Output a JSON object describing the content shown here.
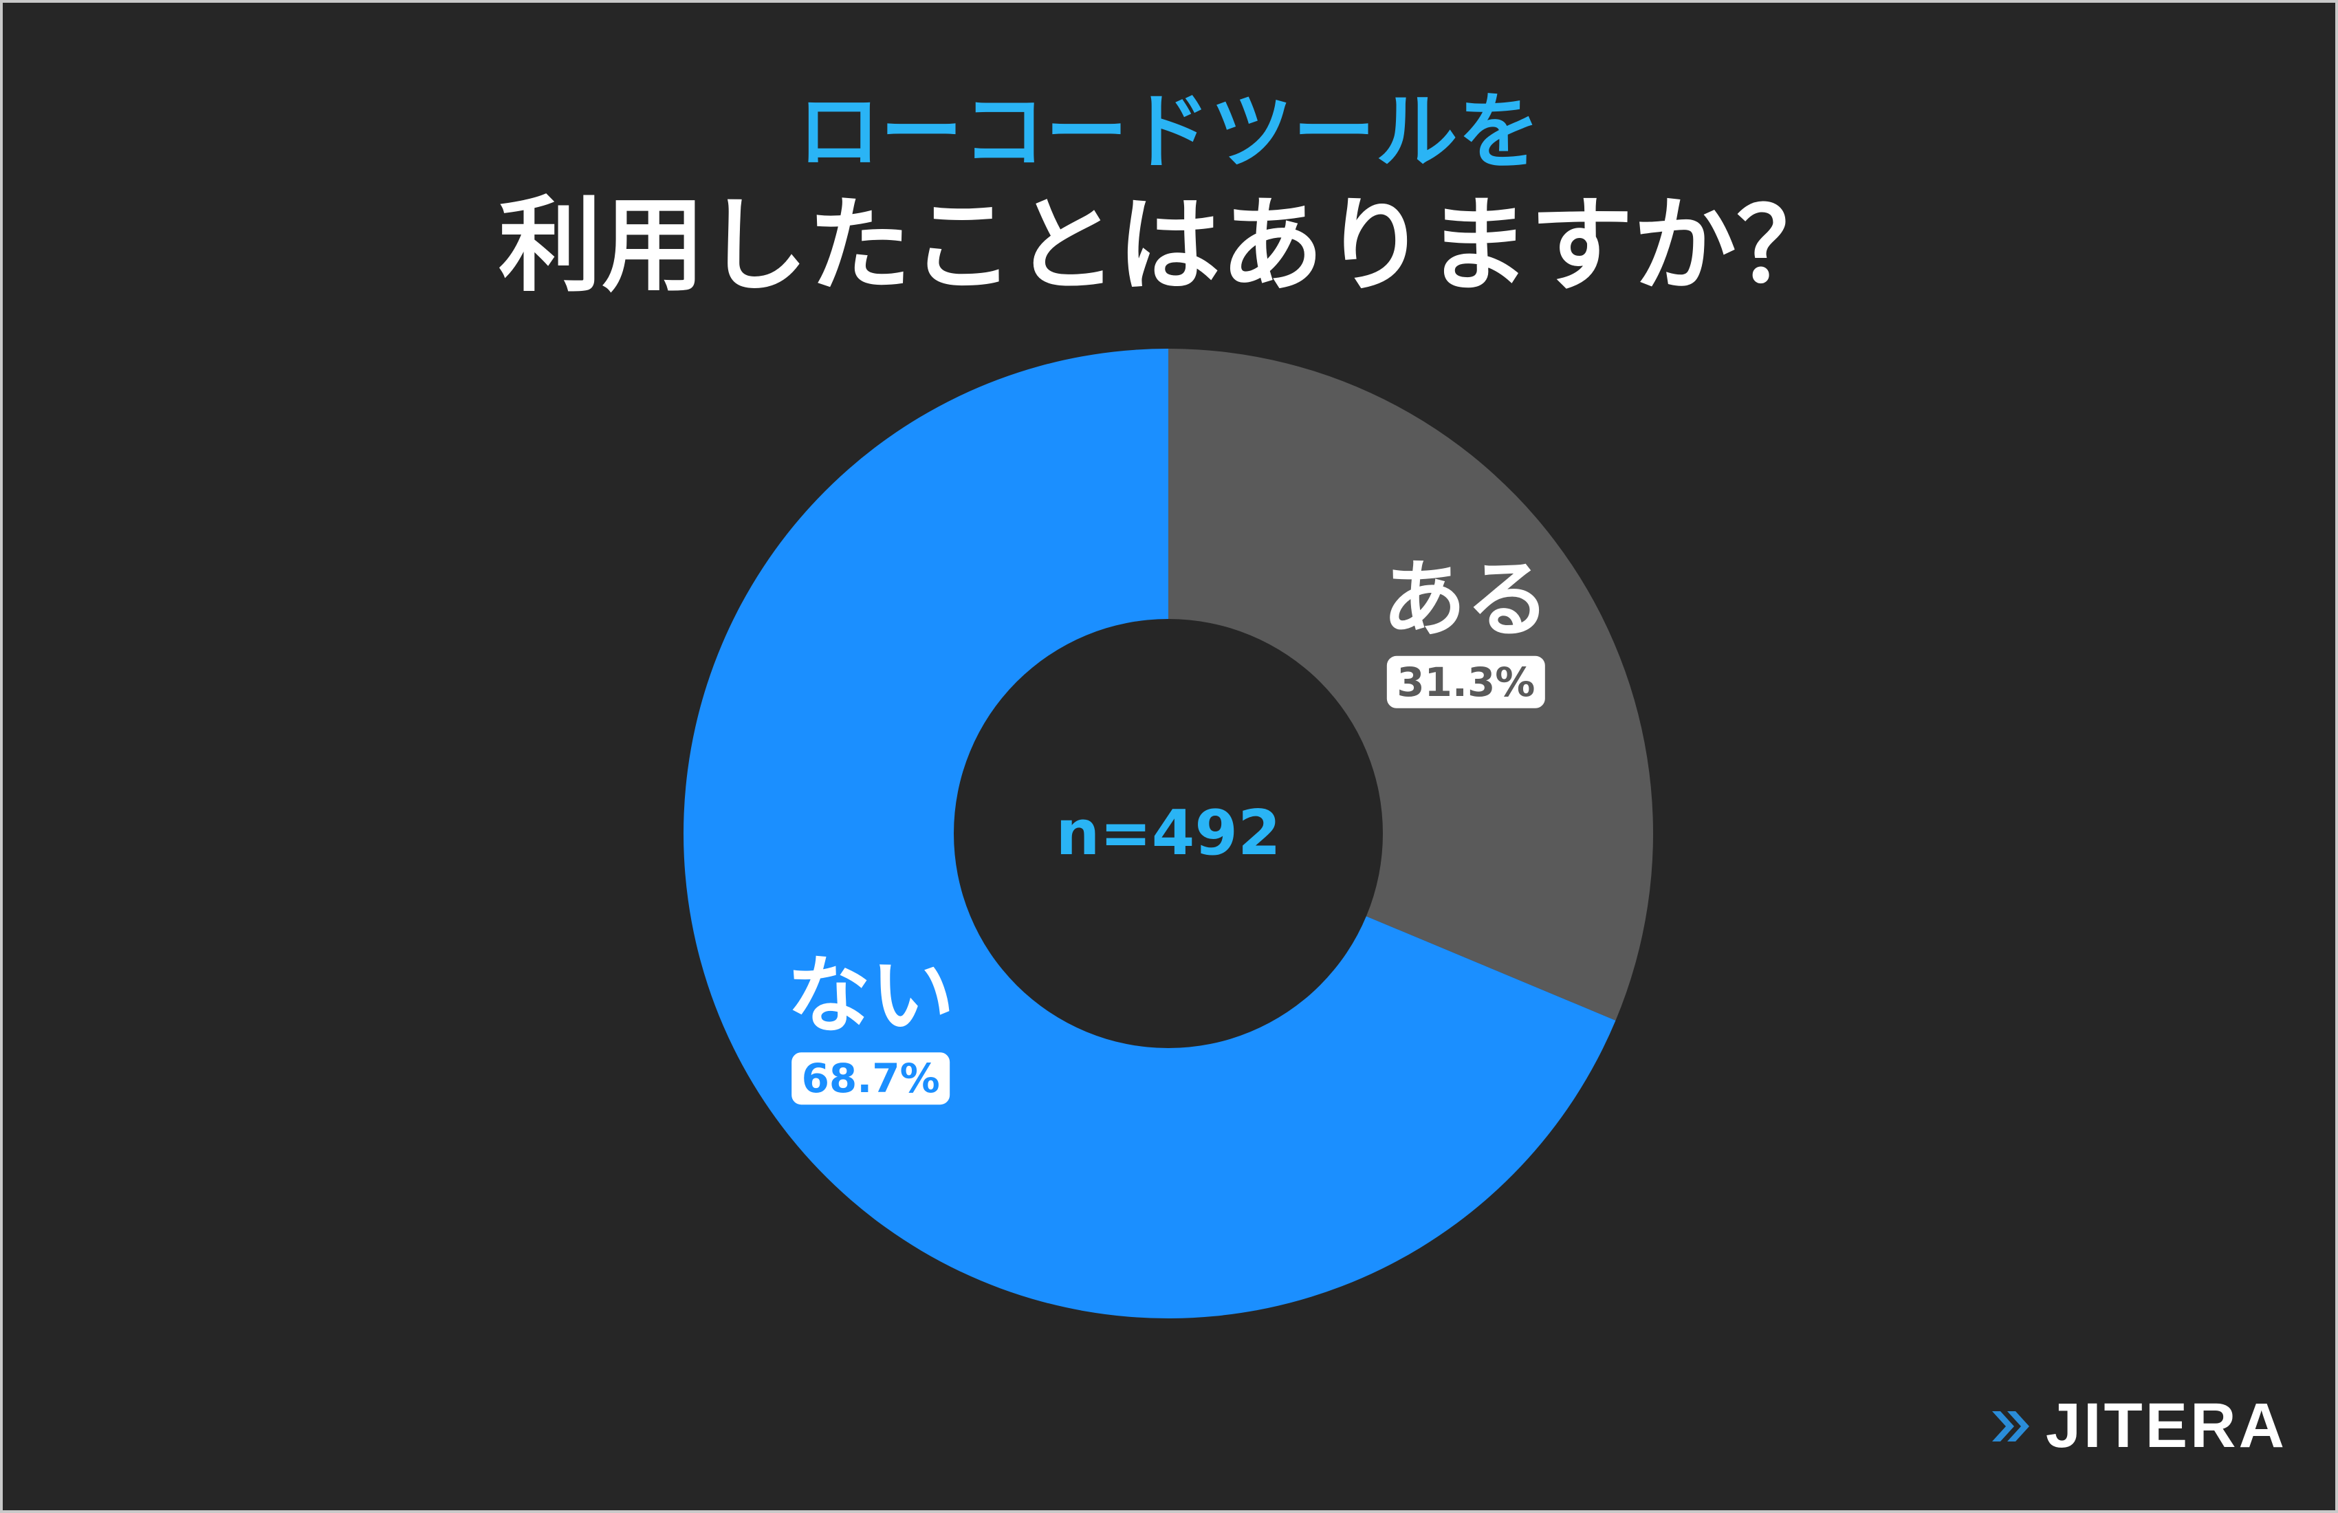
{
  "title": {
    "line1": "ローコードツールを",
    "line2": "利用したことはありますか？"
  },
  "chart_data": {
    "type": "pie",
    "donut": true,
    "title": "ローコードツールを利用したことはありますか？",
    "center_label": "n=492",
    "start": "top",
    "direction": "clockwise",
    "legend": "none",
    "slices": [
      {
        "label": "ある",
        "value": 31.3,
        "value_label": "31.3%",
        "color": "#5a5a5a"
      },
      {
        "label": "ない",
        "value": 68.7,
        "value_label": "68.7%",
        "color": "#1b8fff"
      }
    ]
  },
  "colors": {
    "background": "#262626",
    "title_accent": "#2ab4f5",
    "title_main": "#ffffff",
    "center_text": "#2ab4f5",
    "logo_arrow": "#2a8cd8"
  },
  "brand": {
    "name": "JITERA",
    "icon": "double-chevron-right-icon"
  }
}
